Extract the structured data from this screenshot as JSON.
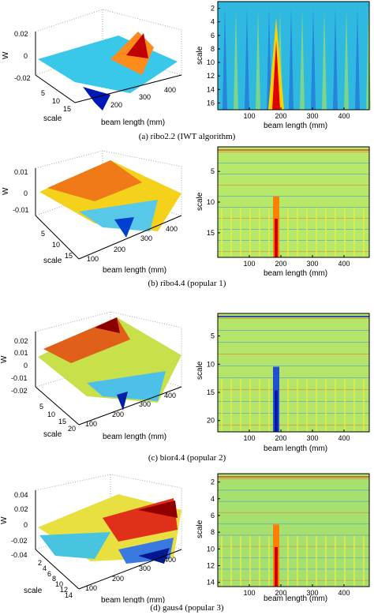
{
  "panels": [
    {
      "caption": "(a) ribo2.2 (IWT algorithm)",
      "surface": {
        "zlabel": "W",
        "xlabel": "beam length (mm)",
        "ylabel": "scale",
        "zticks": [
          "0.02",
          "0",
          "-0.02"
        ],
        "yticks": [
          "5",
          "10",
          "15"
        ],
        "xticks": [
          "200",
          "300",
          "400"
        ]
      },
      "map": {
        "ylabel": "scale",
        "xlabel": "beam length (mm)",
        "yticks": [
          "2",
          "4",
          "6",
          "8",
          "10",
          "12",
          "14",
          "16"
        ],
        "xticks": [
          "100",
          "200",
          "300",
          "400"
        ],
        "scale_range": [
          1,
          17
        ]
      }
    },
    {
      "caption": "(b) ribo4.4 (popular 1)",
      "surface": {
        "zlabel": "W",
        "xlabel": "beam length (mm)",
        "ylabel": "scale",
        "zticks": [
          "0.01",
          "0",
          "-0.01"
        ],
        "yticks": [
          "5",
          "10",
          "15"
        ],
        "xticks": [
          "100",
          "200",
          "300",
          "400"
        ]
      },
      "map": {
        "ylabel": "scale",
        "xlabel": "beam length (mm)",
        "yticks": [
          "5",
          "10",
          "15"
        ],
        "xticks": [
          "100",
          "200",
          "300",
          "400"
        ],
        "scale_range": [
          1,
          19
        ]
      }
    },
    {
      "caption": "(c) bior4.4 (popular 2)",
      "surface": {
        "zlabel": "W",
        "xlabel": "beam length (mm)",
        "ylabel": "scale",
        "zticks": [
          "0.02",
          "0.01",
          "0",
          "-0.01",
          "-0.02"
        ],
        "yticks": [
          "5",
          "10",
          "15",
          "20"
        ],
        "xticks": [
          "100",
          "200",
          "300",
          "400"
        ]
      },
      "map": {
        "ylabel": "scale",
        "xlabel": "beam length (mm)",
        "yticks": [
          "5",
          "10",
          "15",
          "20"
        ],
        "xticks": [
          "100",
          "200",
          "300",
          "400"
        ],
        "scale_range": [
          1,
          22
        ]
      }
    },
    {
      "caption": "(d) gaus4 (popular 3)",
      "surface": {
        "zlabel": "W",
        "xlabel": "beam length (mm)",
        "ylabel": "scale",
        "zticks": [
          "0.04",
          "0.02",
          "0",
          "-0.02",
          "-0.04"
        ],
        "yticks": [
          "2",
          "4",
          "6",
          "8",
          "10",
          "12",
          "14"
        ],
        "xticks": [
          "100",
          "200",
          "300",
          "400"
        ]
      },
      "map": {
        "ylabel": "scale",
        "xlabel": "beam length (mm)",
        "yticks": [
          "2",
          "4",
          "6",
          "8",
          "10",
          "12",
          "14"
        ],
        "xticks": [
          "100",
          "200",
          "300",
          "400"
        ],
        "scale_range": [
          1,
          14.5
        ]
      }
    }
  ],
  "chart_data": [
    {
      "type": "heatmap",
      "title": "(a) ribo2.2 (IWT algorithm)",
      "xlabel": "beam length (mm)",
      "ylabel": "scale",
      "xlim": [
        0,
        480
      ],
      "ylim": [
        1,
        17
      ],
      "y_reversed": true,
      "damage_location_mm": 185
    },
    {
      "type": "heatmap",
      "title": "(b) ribo4.4 (popular 1)",
      "xlabel": "beam length (mm)",
      "ylabel": "scale",
      "xlim": [
        0,
        480
      ],
      "ylim": [
        1,
        19
      ],
      "y_reversed": true,
      "damage_location_mm": 185
    },
    {
      "type": "heatmap",
      "title": "(c) bior4.4 (popular 2)",
      "xlabel": "beam length (mm)",
      "ylabel": "scale",
      "xlim": [
        0,
        480
      ],
      "ylim": [
        1,
        22
      ],
      "y_reversed": true,
      "damage_location_mm": 185
    },
    {
      "type": "heatmap",
      "title": "(d) gaus4 (popular 3)",
      "xlabel": "beam length (mm)",
      "ylabel": "scale",
      "xlim": [
        0,
        480
      ],
      "ylim": [
        1,
        14.5
      ],
      "y_reversed": true,
      "damage_location_mm": 185
    }
  ],
  "colors": {
    "colormap": [
      "#00008f",
      "#0000ff",
      "#00ffff",
      "#ffff00",
      "#ff0000",
      "#800000"
    ],
    "background_map": "#2fb8e0",
    "axis": "#000000"
  }
}
